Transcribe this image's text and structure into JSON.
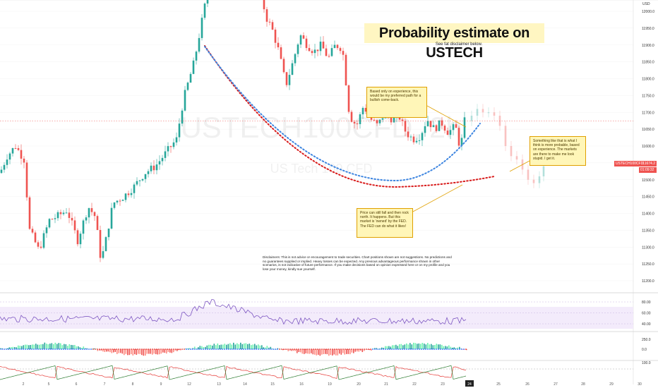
{
  "header": {
    "currency": "USD"
  },
  "title": "Probability estimate on USTECH",
  "subtitle": "See fat disclaimer below.",
  "watermark": {
    "symbol": "USTECH100CFD, 2h",
    "name": "US Tech 100 CFD"
  },
  "notes": {
    "path": "Based only on experience, this would be my preferred path for a bullish come-back.",
    "right": "Something like that is what I think is more probable, based on experience. The markets are there to make me look stupid. I get it.",
    "fall": "Price can still fall and then rock north. It happens. But this market is 'owned' by the FED. The FED can do what it likes!"
  },
  "disclaimer": "Disclaimers: This is not advice or encouragement to trade securities. Chart positions shown are not suggestions. No predictions and no guarantees supplied or implied. Heavy losses can be expected. Any previous advantageous performance shown in other scenarios, is not indicative of future performance. If you make decisions based on opinion expressed here or on my profile and you lose your money, kindly sue yourself.",
  "price_tag": {
    "symbol": "USTECH100CFD",
    "price": "11674.2",
    "countdown": "01:09:32"
  },
  "chart_data": {
    "type": "candlestick",
    "price_axis": {
      "ticks": [
        11200,
        11250,
        11300,
        11350,
        11400,
        11450,
        11500,
        11550,
        11600,
        11650,
        11700,
        11750,
        11800,
        11850,
        11900,
        11950,
        12000,
        12050,
        12100,
        12150,
        12200,
        12250
      ]
    },
    "price_axis_labels": [
      "11200.0",
      "11250.0",
      "11300.0",
      "11350.0",
      "11400.0",
      "11450.0",
      "11500.0",
      "11550.0",
      "11600.0",
      "11650.0",
      "11700.0",
      "11750.0",
      "11800.0",
      "11850.0",
      "11900.0",
      "11950.0",
      "12000.0",
      "12050.0",
      "12100.0",
      "12150.0",
      "12200.0",
      "12250.0"
    ],
    "date_axis_labels": [
      "2",
      "5",
      "6",
      "7",
      "8",
      "9",
      "12",
      "13",
      "14",
      "15",
      "16",
      "19",
      "20",
      "21",
      "22",
      "23",
      "24",
      "25",
      "26",
      "27",
      "28",
      "29",
      "30"
    ],
    "last_price": 11674.2,
    "current_period": "24",
    "rsi": {
      "ticks": [
        "80.00",
        "60.00",
        "40.00"
      ]
    },
    "macd": {
      "ticks": [
        "250.0",
        "0.0",
        "-250.0"
      ]
    },
    "osc": {
      "ticks": [
        "100.0"
      ]
    },
    "colors": {
      "up": "#26a69a",
      "down": "#ef5350",
      "bullish_path": "#3d85e0",
      "bearish_path": "#d81b1b",
      "rsi": "#7e57c2"
    }
  }
}
